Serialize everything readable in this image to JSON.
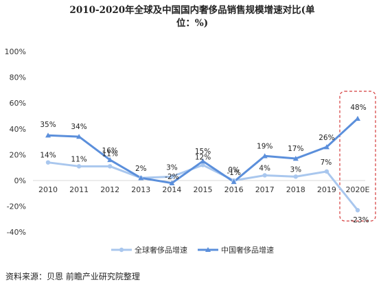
{
  "chart_data": {
    "type": "line",
    "title": "2010-2020年全球及中国国内奢侈品销售规模增速对比(单位：%)",
    "x": [
      "2010",
      "2011",
      "2012",
      "2013",
      "2014",
      "2015",
      "2016",
      "2017",
      "2018",
      "2019",
      "2020E"
    ],
    "ylim": [
      -40,
      100
    ],
    "yticks": [
      "100%",
      "80%",
      "60%",
      "40%",
      "20%",
      "0%",
      "-20%",
      "-40%"
    ],
    "grid": false,
    "legend_position": "bottom",
    "series": [
      {
        "name": "全球奢侈品增速",
        "values": [
          14,
          11,
          11,
          2,
          3,
          12,
          0,
          4,
          3,
          7,
          -23
        ],
        "labels": [
          "14%",
          "11%",
          "11%",
          "2%",
          "3%",
          "12%",
          "0%",
          "4%",
          "3%",
          "7%",
          "-23%"
        ],
        "color": "#a9c7ee",
        "marker": "circle"
      },
      {
        "name": "中国奢侈品增速",
        "values": [
          35,
          34,
          16,
          2,
          -2,
          15,
          -1,
          19,
          17,
          26,
          48
        ],
        "labels": [
          "35%",
          "34%",
          "16%",
          "",
          "-2%",
          "15%",
          "-1%",
          "19%",
          "17%",
          "26%",
          "48%"
        ],
        "color": "#5b8fdb",
        "marker": "triangle"
      }
    ],
    "annotations": [
      {
        "type": "dashed-box",
        "target": "2020E",
        "color": "#d43a3a"
      }
    ]
  },
  "source": "资料来源：贝恩 前瞻产业研究院整理"
}
